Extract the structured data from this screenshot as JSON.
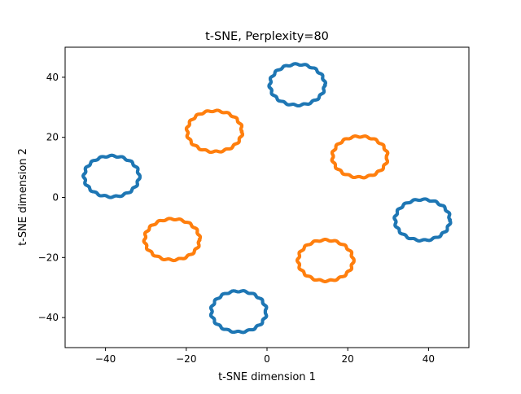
{
  "chart_data": {
    "type": "scatter",
    "title": "t-SNE, Perplexity=80",
    "xlabel": "t-SNE dimension 1",
    "ylabel": "t-SNE dimension 2",
    "xlim": [
      -50,
      50
    ],
    "ylim": [
      -50,
      50
    ],
    "xticks": [
      -40,
      -20,
      0,
      20,
      40
    ],
    "yticks": [
      -40,
      -20,
      0,
      20,
      40
    ],
    "xtick_labels": [
      "−40",
      "−20",
      "0",
      "20",
      "40"
    ],
    "ytick_labels": [
      "−40",
      "−20",
      "0",
      "20",
      "40"
    ],
    "grid": false,
    "legend": "none",
    "series": [
      {
        "color": "#1f77b4",
        "rings": [
          {
            "cx": 7.5,
            "cy": 37.5,
            "rx": 6.8,
            "ry": 6.8
          },
          {
            "cx": -38.5,
            "cy": 7.0,
            "rx": 6.8,
            "ry": 6.8
          },
          {
            "cx": 38.5,
            "cy": -7.5,
            "rx": 6.8,
            "ry": 6.8
          },
          {
            "cx": -7.0,
            "cy": -38.0,
            "rx": 6.8,
            "ry": 6.8
          }
        ]
      },
      {
        "color": "#ff7f0e",
        "rings": [
          {
            "cx": -13.0,
            "cy": 22.0,
            "rx": 6.8,
            "ry": 6.8
          },
          {
            "cx": 23.0,
            "cy": 13.5,
            "rx": 6.8,
            "ry": 6.8
          },
          {
            "cx": -23.5,
            "cy": -14.0,
            "rx": 6.8,
            "ry": 6.8
          },
          {
            "cx": 14.5,
            "cy": -21.0,
            "rx": 6.8,
            "ry": 6.8
          }
        ]
      }
    ]
  }
}
